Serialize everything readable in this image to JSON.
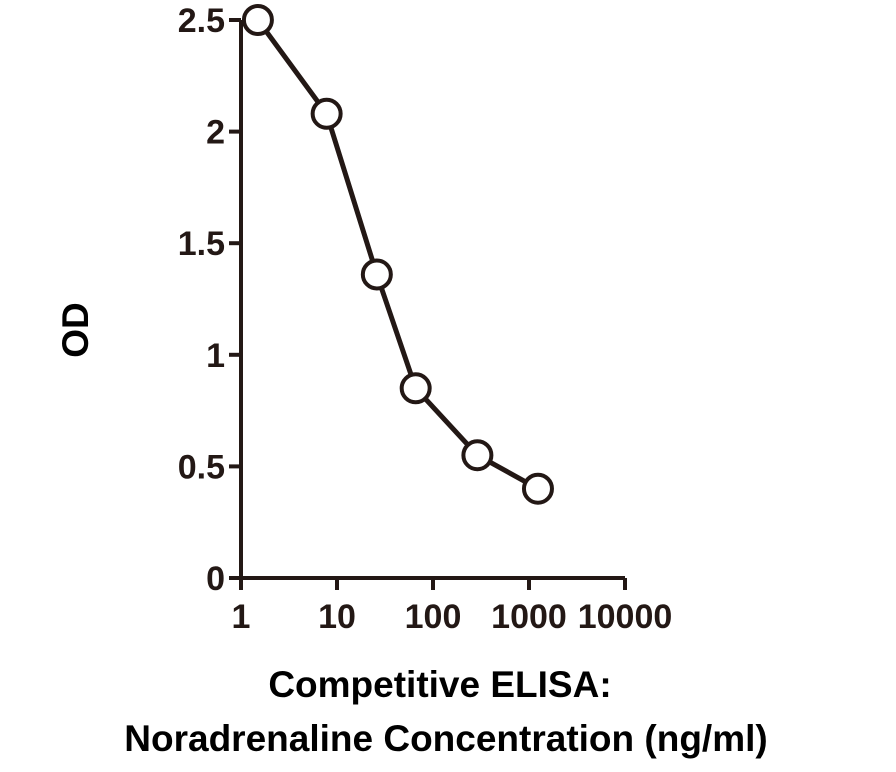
{
  "chart_data": {
    "type": "line",
    "x_scale": "log",
    "xlabel_line1": "Competitive ELISA:",
    "xlabel_line2": "Noradrenaline Concentration (ng/ml)",
    "ylabel": "OD",
    "xlim": [
      1,
      10000
    ],
    "ylim": [
      0,
      2.5
    ],
    "x_ticks": [
      1,
      10,
      100,
      1000,
      10000
    ],
    "x_tick_labels": [
      "1",
      "10",
      "100",
      "1000",
      "10000"
    ],
    "y_ticks": [
      0,
      0.5,
      1,
      1.5,
      2,
      2.5
    ],
    "y_tick_labels": [
      "0",
      "0.5",
      "1",
      "1.5",
      "2",
      "2.5"
    ],
    "grid": false,
    "legend": "none",
    "series": [
      {
        "x": [
          1.5,
          7.8,
          26,
          66,
          290,
          1240
        ],
        "y": [
          2.5,
          2.08,
          1.36,
          0.85,
          0.55,
          0.4
        ]
      }
    ],
    "colors": {
      "line": "#231815",
      "marker_fill": "#ffffff",
      "text": "#231815"
    }
  }
}
